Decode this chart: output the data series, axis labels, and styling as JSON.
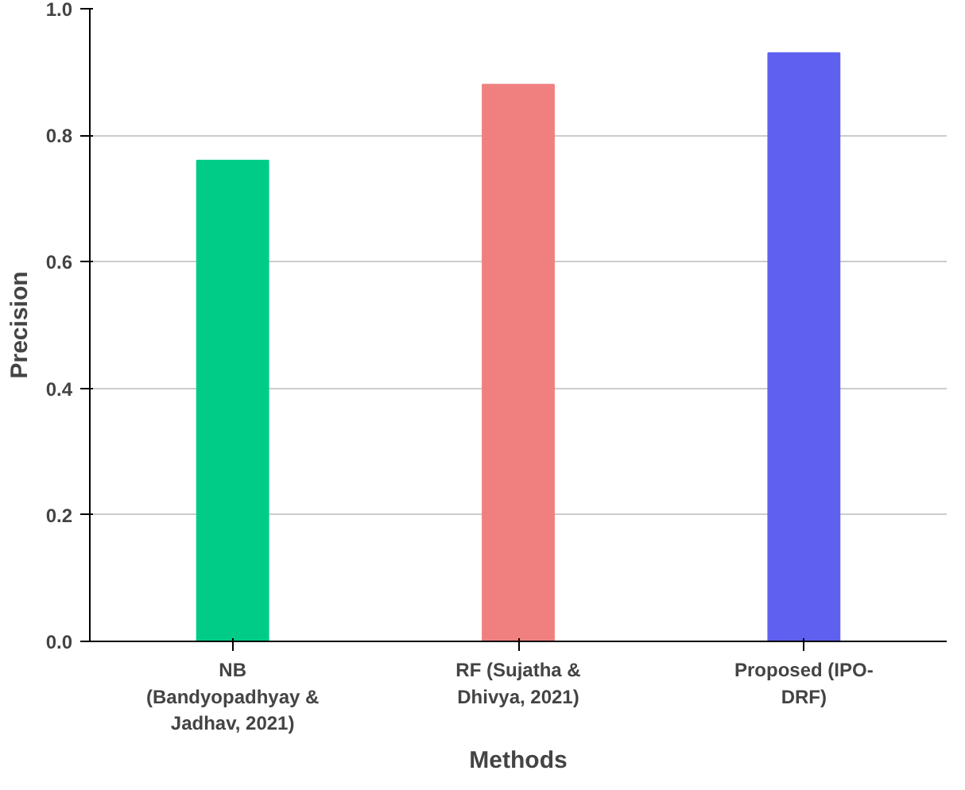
{
  "chart_data": {
    "type": "bar",
    "xlabel": "Methods",
    "ylabel": "Precision",
    "categories": [
      "NB (Bandyopadhyay & Jadhav, 2021)",
      "RF (Sujatha & Dhivya, 2021)",
      "Proposed (IPO-DRF)"
    ],
    "values": [
      0.76,
      0.88,
      0.93
    ],
    "colors": [
      "#00cc88",
      "#f08080",
      "#6060f0"
    ],
    "ylim": [
      0,
      1
    ],
    "yticks": [
      {
        "value": 0,
        "label": "0.0"
      },
      {
        "value": 0.2,
        "label": "0.2"
      },
      {
        "value": 0.4,
        "label": "0.4"
      },
      {
        "value": 0.6,
        "label": "0.6"
      },
      {
        "value": 0.8,
        "label": "0.8"
      },
      {
        "value": 1,
        "label": "1.0"
      }
    ],
    "grid": "y"
  }
}
